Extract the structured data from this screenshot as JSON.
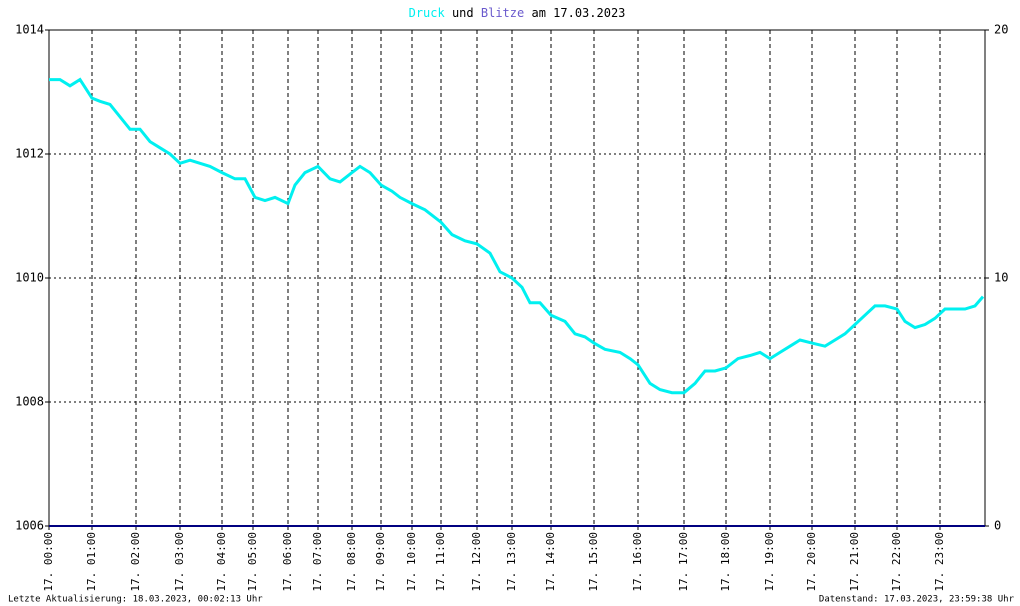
{
  "chart_data": {
    "type": "line",
    "title_connector": "und",
    "title_suffix": "am 17.03.2023",
    "footer_left": "Letzte Aktualisierung: 18.03.2023, 00:02:13 Uhr",
    "footer_right": "Datenstand: 17.03.2023, 23:59:38 Uhr",
    "xlim": [
      0,
      936
    ],
    "xticks": [
      {
        "value": 0,
        "label": "17. 00:00"
      },
      {
        "value": 43,
        "label": "17. 01:00"
      },
      {
        "value": 87,
        "label": "17. 02:00"
      },
      {
        "value": 131,
        "label": "17. 03:00"
      },
      {
        "value": 173,
        "label": "17. 04:00"
      },
      {
        "value": 204,
        "label": "17. 05:00"
      },
      {
        "value": 239,
        "label": "17. 06:00"
      },
      {
        "value": 269,
        "label": "17. 07:00"
      },
      {
        "value": 303,
        "label": "17. 08:00"
      },
      {
        "value": 332,
        "label": "17. 09:00"
      },
      {
        "value": 363,
        "label": "17. 10:00"
      },
      {
        "value": 392,
        "label": "17. 11:00"
      },
      {
        "value": 428,
        "label": "17. 12:00"
      },
      {
        "value": 463,
        "label": "17. 13:00"
      },
      {
        "value": 502,
        "label": "17. 14:00"
      },
      {
        "value": 545,
        "label": "17. 15:00"
      },
      {
        "value": 589,
        "label": "17. 16:00"
      },
      {
        "value": 635,
        "label": "17. 17:00"
      },
      {
        "value": 677,
        "label": "17. 18:00"
      },
      {
        "value": 721,
        "label": "17. 19:00"
      },
      {
        "value": 763,
        "label": "17. 20:00"
      },
      {
        "value": 806,
        "label": "17. 21:00"
      },
      {
        "value": 848,
        "label": "17. 22:00"
      },
      {
        "value": 891,
        "label": "17. 23:00"
      }
    ],
    "ylim": [
      1006,
      1014
    ],
    "yticks": [
      1006,
      1008,
      1010,
      1012,
      1014
    ],
    "y2lim": [
      0,
      20
    ],
    "y2ticks": [
      0,
      10,
      20
    ],
    "grid": true,
    "series": [
      {
        "name": "Druck",
        "color": "#00f0f0",
        "x": [
          0,
          11,
          21,
          31,
          43,
          51,
          61,
          71,
          81,
          91,
          101,
          111,
          121,
          131,
          141,
          151,
          161,
          173,
          186,
          196,
          206,
          216,
          226,
          239,
          246,
          256,
          269,
          281,
          291,
          303,
          311,
          321,
          332,
          343,
          351,
          363,
          376,
          392,
          403,
          416,
          428,
          441,
          451,
          463,
          473,
          481,
          491,
          502,
          516,
          526,
          536,
          545,
          556,
          571,
          581,
          589,
          601,
          611,
          623,
          635,
          646,
          656,
          666,
          677,
          689,
          701,
          711,
          721,
          731,
          741,
          751,
          763,
          776,
          786,
          796,
          806,
          816,
          826,
          836,
          848,
          856,
          866,
          876,
          886,
          896,
          906,
          916,
          926,
          934
        ],
        "values": [
          1013.2,
          1013.2,
          1013.1,
          1013.2,
          1012.9,
          1012.85,
          1012.8,
          1012.6,
          1012.4,
          1012.4,
          1012.2,
          1012.1,
          1012.0,
          1011.85,
          1011.9,
          1011.85,
          1011.8,
          1011.7,
          1011.6,
          1011.6,
          1011.3,
          1011.25,
          1011.3,
          1011.2,
          1011.5,
          1011.7,
          1011.8,
          1011.6,
          1011.55,
          1011.7,
          1011.8,
          1011.7,
          1011.5,
          1011.4,
          1011.3,
          1011.2,
          1011.1,
          1010.9,
          1010.7,
          1010.6,
          1010.55,
          1010.4,
          1010.1,
          1010.0,
          1009.85,
          1009.6,
          1009.6,
          1009.4,
          1009.3,
          1009.1,
          1009.05,
          1008.95,
          1008.85,
          1008.8,
          1008.7,
          1008.6,
          1008.3,
          1008.2,
          1008.15,
          1008.15,
          1008.3,
          1008.5,
          1008.5,
          1008.55,
          1008.7,
          1008.75,
          1008.8,
          1008.7,
          1008.8,
          1008.9,
          1009.0,
          1008.95,
          1008.9,
          1009.0,
          1009.1,
          1009.25,
          1009.4,
          1009.55,
          1009.55,
          1009.5,
          1009.3,
          1009.2,
          1009.25,
          1009.35,
          1009.5,
          1009.5,
          1009.5,
          1009.55,
          1009.7
        ]
      },
      {
        "name": "Blitze",
        "color": "#6a5acd",
        "axis": "y2",
        "line_color": "#000080",
        "x": [
          0,
          936
        ],
        "values": [
          0,
          0
        ]
      }
    ]
  }
}
